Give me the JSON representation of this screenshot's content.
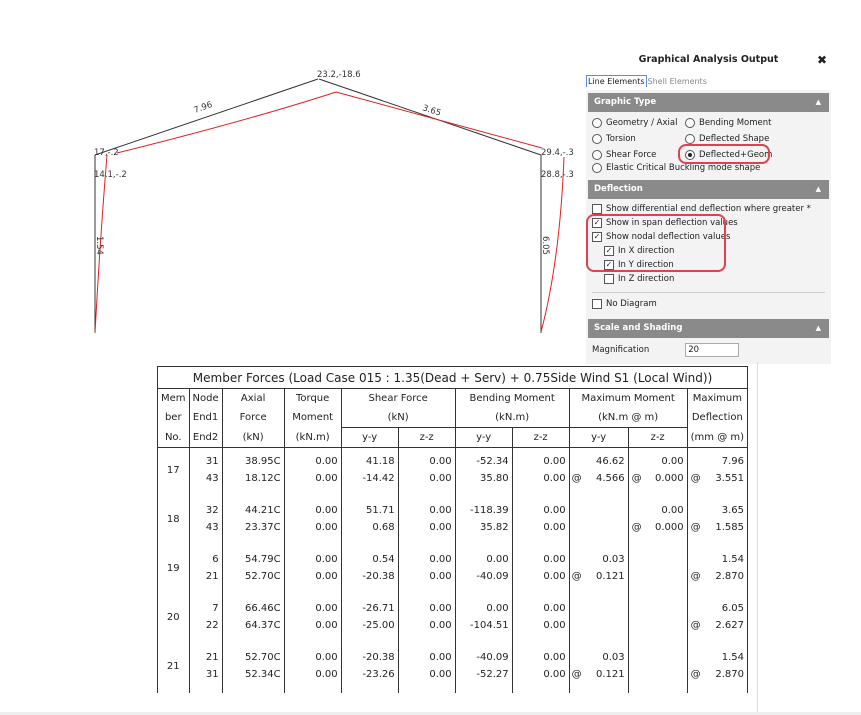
{
  "frame": {
    "labels": {
      "apex": "23.2,-18.6",
      "left_rafter": "7.96",
      "right_rafter": "3.65",
      "left_eave_top": "17,-.2",
      "left_eave_bottom": "14.1,-.2",
      "right_eave_top": "29.4,-.3",
      "right_eave_bottom": "28.8,-.3",
      "left_column": "1.54",
      "right_column": "6.05"
    },
    "colors": {
      "geometry": "#333333",
      "deflected": "#e02020"
    }
  },
  "panel": {
    "title": "Graphical Analysis Output",
    "close_icon": "close-x-icon",
    "tabs": [
      "Line Elements",
      "Shell Elements"
    ],
    "graphic_type": {
      "header": "Graphic Type",
      "options": [
        {
          "label": "Geometry / Axial",
          "selected": false
        },
        {
          "label": "Bending Moment",
          "selected": false
        },
        {
          "label": "Torsion",
          "selected": false
        },
        {
          "label": "Deflected Shape",
          "selected": false
        },
        {
          "label": "Shear Force",
          "selected": false
        },
        {
          "label": "Deflected+Geom",
          "selected": true
        }
      ],
      "buckling": "Elastic Critical Buckling mode shape"
    },
    "deflection": {
      "header": "Deflection",
      "items": [
        {
          "label": "Show differential end deflection where greater *",
          "checked": false
        },
        {
          "label": "Show in span deflection values",
          "checked": true
        },
        {
          "label": "Show nodal deflection values",
          "checked": true
        },
        {
          "label": "In X direction",
          "checked": true
        },
        {
          "label": "In Y direction",
          "checked": true
        },
        {
          "label": "In Z direction",
          "checked": false
        }
      ],
      "no_diagram": "No Diagram"
    },
    "scale": {
      "header": "Scale and Shading",
      "magnification_label": "Magnification",
      "magnification_value": "20"
    },
    "highlight_color": "#e04050"
  },
  "table": {
    "title": "Member Forces (Load Case 015 : 1.35(Dead + Serv) + 0.75Side Wind S1 (Local Wind))",
    "headers": {
      "mem": [
        "Mem",
        "ber",
        "No."
      ],
      "node": [
        "Node",
        "End1",
        "End2"
      ],
      "axial": [
        "Axial",
        "Force",
        "(kN)"
      ],
      "torque": [
        "Torque",
        "Moment",
        "(kN.m)"
      ],
      "shear": [
        "Shear Force",
        "(kN)"
      ],
      "bending": [
        "Bending Moment",
        "(kN.m)"
      ],
      "maxmom": [
        "Maximum Moment",
        "(kN.m @ m)"
      ],
      "defl": [
        "Maximum",
        "Deflection",
        "(mm @ m)"
      ],
      "yy": "y-y",
      "zz": "z-z"
    },
    "rows": [
      {
        "member": "17",
        "nodes": [
          "31",
          "43"
        ],
        "axial": [
          "38.95C",
          "18.12C"
        ],
        "torque": [
          "0.00",
          "0.00"
        ],
        "sf_yy": [
          "41.18",
          "-14.42"
        ],
        "sf_zz": [
          "0.00",
          "0.00"
        ],
        "bm_yy": [
          "-52.34",
          "35.80"
        ],
        "bm_zz": [
          "0.00",
          "0.00 @"
        ],
        "mm_yy": [
          "46.62",
          "4.566"
        ],
        "mm_zz": [
          "0.00",
          "@ 0.000"
        ],
        "defl": [
          "7.96",
          "@ 3.551"
        ]
      },
      {
        "member": "18",
        "nodes": [
          "32",
          "43"
        ],
        "axial": [
          "44.21C",
          "23.37C"
        ],
        "torque": [
          "0.00",
          "0.00"
        ],
        "sf_yy": [
          "51.71",
          "0.68"
        ],
        "sf_zz": [
          "0.00",
          "0.00"
        ],
        "bm_yy": [
          "-118.39",
          "35.82"
        ],
        "bm_zz": [
          "0.00",
          "0.00"
        ],
        "mm_yy": [
          "",
          ""
        ],
        "mm_zz": [
          "0.00",
          "@ 0.000"
        ],
        "defl": [
          "3.65",
          "@ 1.585"
        ]
      },
      {
        "member": "19",
        "nodes": [
          "6",
          "21"
        ],
        "axial": [
          "54.79C",
          "52.70C"
        ],
        "torque": [
          "0.00",
          "0.00"
        ],
        "sf_yy": [
          "0.54",
          "-20.38"
        ],
        "sf_zz": [
          "0.00",
          "0.00"
        ],
        "bm_yy": [
          "0.00",
          "-40.09"
        ],
        "bm_zz": [
          "0.00",
          "0.00 @"
        ],
        "mm_yy": [
          "0.03",
          "0.121"
        ],
        "mm_zz": [
          "",
          ""
        ],
        "defl": [
          "1.54",
          "@ 2.870"
        ]
      },
      {
        "member": "20",
        "nodes": [
          "7",
          "22"
        ],
        "axial": [
          "66.46C",
          "64.37C"
        ],
        "torque": [
          "0.00",
          "0.00"
        ],
        "sf_yy": [
          "-26.71",
          "-25.00"
        ],
        "sf_zz": [
          "0.00",
          "0.00"
        ],
        "bm_yy": [
          "0.00",
          "-104.51"
        ],
        "bm_zz": [
          "0.00",
          "0.00"
        ],
        "mm_yy": [
          "",
          ""
        ],
        "mm_zz": [
          "",
          ""
        ],
        "defl": [
          "6.05",
          "@ 2.627"
        ]
      },
      {
        "member": "21",
        "nodes": [
          "21",
          "31"
        ],
        "axial": [
          "52.70C",
          "52.34C"
        ],
        "torque": [
          "0.00",
          "0.00"
        ],
        "sf_yy": [
          "-20.38",
          "-23.26"
        ],
        "sf_zz": [
          "0.00",
          "0.00"
        ],
        "bm_yy": [
          "-40.09",
          "-52.27"
        ],
        "bm_zz": [
          "0.00",
          "0.00 @"
        ],
        "mm_yy": [
          "0.03",
          "0.121"
        ],
        "mm_zz": [
          "",
          ""
        ],
        "defl": [
          "1.54",
          "@ 2.870"
        ]
      }
    ]
  }
}
